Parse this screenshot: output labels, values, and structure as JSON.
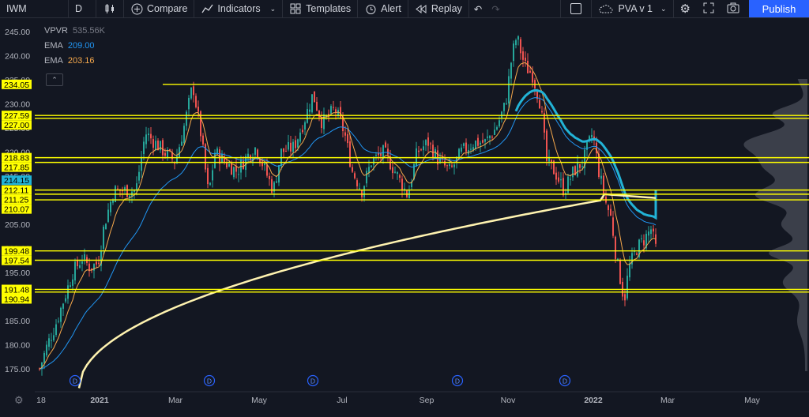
{
  "toolbar": {
    "symbol": "IWM",
    "interval": "D",
    "compare_label": "Compare",
    "indicators_label": "Indicators",
    "templates_label": "Templates",
    "alert_label": "Alert",
    "replay_label": "Replay",
    "layout_name": "PVA v 1",
    "publish_label": "Publish"
  },
  "legend": {
    "vpvr_label": "VPVR",
    "vpvr_value": "535.56K",
    "ema1_label": "EMA",
    "ema1_value": "209.00",
    "ema1_color": "#2196f3",
    "ema2_label": "EMA",
    "ema2_value": "203.16",
    "ema2_color": "#f7a94c"
  },
  "chart_data": {
    "type": "candlestick",
    "symbol": "IWM",
    "interval": "D",
    "y_range": [
      171,
      247
    ],
    "y_ticks": [
      245,
      240,
      235,
      230,
      225,
      220,
      215,
      210,
      205,
      200,
      195,
      190,
      185,
      180,
      175
    ],
    "y_tick_labels": [
      "245.00",
      "240.00",
      "235.00",
      "230.00",
      "225.00",
      "220.00",
      "215.00",
      "210.00",
      "205.00",
      "200.00",
      "195.00",
      "190.00",
      "185.00",
      "180.00",
      "175.00"
    ],
    "x_labels": [
      "18",
      "2021",
      "Mar",
      "May",
      "Jul",
      "Sep",
      "Nov",
      "2022",
      "Mar",
      "May"
    ],
    "horizontal_levels": [
      {
        "value": 234.05,
        "label": "234.05"
      },
      {
        "value": 227.59,
        "label": "227.59"
      },
      {
        "value": 227.0,
        "label": "227.00"
      },
      {
        "value": 218.83,
        "label": "218.83"
      },
      {
        "value": 217.85,
        "label": "217.85"
      },
      {
        "value": 212.11,
        "label": "212.11"
      },
      {
        "value": 211.25,
        "label": "211.25"
      },
      {
        "value": 210.07,
        "label": "210.07"
      },
      {
        "value": 199.48,
        "label": "199.48"
      },
      {
        "value": 197.54,
        "label": "197.54"
      },
      {
        "value": 191.48,
        "label": "191.48"
      },
      {
        "value": 190.94,
        "label": "190.94"
      }
    ],
    "current_price": {
      "value": 214.15,
      "label": "214.15"
    },
    "dividend_markers": [
      "D",
      "D",
      "D",
      "D",
      "D"
    ],
    "line_colors": {
      "level": "#ffff00",
      "ema_fast": "#2196f3",
      "ema_slow": "#f7a94c",
      "sma_200": "#fff3b0",
      "ema_highlight": "#22b3d6",
      "up": "#26a69a",
      "down": "#ef5350"
    }
  }
}
